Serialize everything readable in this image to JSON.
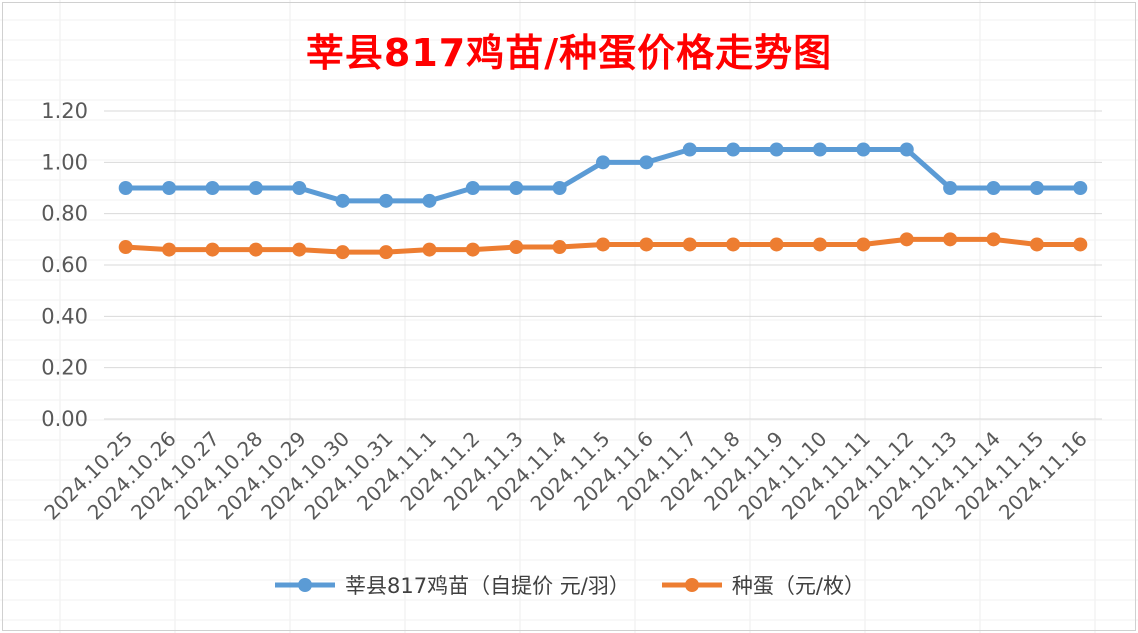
{
  "chart_data": {
    "type": "line",
    "title": "莘县817鸡苗/种蛋价格走势图",
    "categories": [
      "2024.10.25",
      "2024.10.26",
      "2024.10.27",
      "2024.10.28",
      "2024.10.29",
      "2024.10.30",
      "2024.10.31",
      "2024.11.1",
      "2024.11.2",
      "2024.11.3",
      "2024.11.4",
      "2024.11.5",
      "2024.11.6",
      "2024.11.7",
      "2024.11.8",
      "2024.11.9",
      "2024.11.10",
      "2024.11.11",
      "2024.11.12",
      "2024.11.13",
      "2024.11.14",
      "2024.11.15",
      "2024.11.16"
    ],
    "series": [
      {
        "name": "莘县817鸡苗（自提价 元/羽）",
        "color": "#5b9bd5",
        "values": [
          0.9,
          0.9,
          0.9,
          0.9,
          0.9,
          0.85,
          0.85,
          0.85,
          0.9,
          0.9,
          0.9,
          1.0,
          1.0,
          1.05,
          1.05,
          1.05,
          1.05,
          1.05,
          1.05,
          0.9,
          0.9,
          0.9,
          0.9
        ]
      },
      {
        "name": "种蛋（元/枚）",
        "color": "#ed7d31",
        "values": [
          0.67,
          0.66,
          0.66,
          0.66,
          0.66,
          0.65,
          0.65,
          0.66,
          0.66,
          0.67,
          0.67,
          0.68,
          0.68,
          0.68,
          0.68,
          0.68,
          0.68,
          0.68,
          0.7,
          0.7,
          0.7,
          0.68,
          0.68
        ]
      }
    ],
    "ylim": [
      0,
      1.2
    ],
    "yticks": [
      "0.00",
      "0.20",
      "0.40",
      "0.60",
      "0.80",
      "1.00",
      "1.20"
    ],
    "grid": true,
    "legend": "bottom"
  }
}
